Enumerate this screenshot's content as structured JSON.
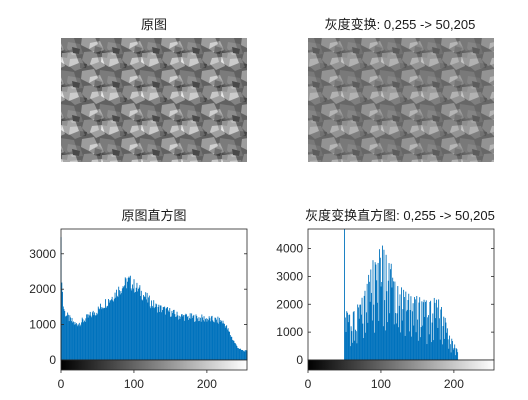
{
  "panels": {
    "original_image": {
      "title": "原图"
    },
    "transformed_image": {
      "title": "灰度变换: 0,255 -> 50,205"
    }
  },
  "colors": {
    "bar": "#0072BD",
    "axis": "#262626",
    "background": "#ffffff"
  },
  "chart_data": [
    {
      "type": "bar",
      "title": "原图直方图",
      "xlabel": "",
      "ylabel": "",
      "xlim": [
        0,
        255
      ],
      "ylim": [
        0,
        3700
      ],
      "xticks": [
        "0",
        "100",
        "200"
      ],
      "yticks": [
        "0",
        "1000",
        "2000",
        "3000"
      ],
      "colorbar": "grayscale 0-255",
      "profile": {
        "x": [
          0,
          1,
          2,
          3,
          5,
          8,
          12,
          20,
          30,
          40,
          50,
          60,
          70,
          80,
          88,
          93,
          100,
          110,
          120,
          130,
          140,
          150,
          160,
          170,
          180,
          190,
          200,
          210,
          220,
          225,
          230,
          235,
          240,
          245,
          250,
          255
        ],
        "y": [
          3200,
          2400,
          1900,
          1550,
          1350,
          1250,
          1150,
          1000,
          1100,
          1250,
          1400,
          1600,
          1780,
          2000,
          2150,
          2230,
          2100,
          1900,
          1680,
          1500,
          1420,
          1350,
          1250,
          1220,
          1200,
          1180,
          1160,
          1130,
          1100,
          1000,
          800,
          600,
          420,
          300,
          260,
          250
        ]
      }
    },
    {
      "type": "bar",
      "title": "灰度变换直方图: 0,255 -> 50,205",
      "xlabel": "",
      "ylabel": "",
      "xlim": [
        0,
        255
      ],
      "ylim": [
        0,
        4700
      ],
      "xticks": [
        "0",
        "100",
        "200"
      ],
      "yticks": [
        "0",
        "1000",
        "2000",
        "3000",
        "4000"
      ],
      "colorbar": "grayscale 0-255",
      "spike": {
        "x": 50,
        "y": 4700
      },
      "profile": {
        "x": [
          51,
          53,
          56,
          60,
          65,
          70,
          75,
          80,
          85,
          90,
          95,
          100,
          105,
          110,
          115,
          120,
          125,
          130,
          140,
          150,
          160,
          170,
          180,
          185,
          190,
          195,
          200,
          205
        ],
        "y": [
          1700,
          2000,
          1900,
          1850,
          2000,
          2200,
          2500,
          2900,
          3300,
          3700,
          3950,
          4100,
          4200,
          3900,
          3500,
          3050,
          2800,
          2600,
          2450,
          2300,
          2250,
          2250,
          2200,
          1900,
          1400,
          900,
          600,
          400
        ]
      }
    }
  ]
}
